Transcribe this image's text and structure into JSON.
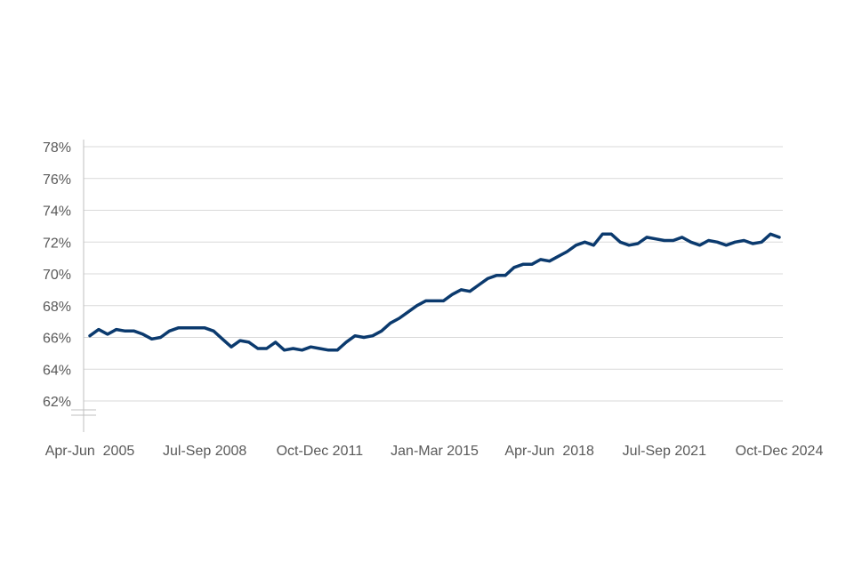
{
  "chart_data": {
    "type": "line",
    "title": "",
    "xlabel": "",
    "ylabel": "",
    "x_tick_labels": [
      "Apr-Jun  2005",
      "Jul-Sep 2008",
      "Oct-Dec 2011",
      "Jan-Mar 2015",
      "Apr-Jun  2018",
      "Jul-Sep 2021",
      "Oct-Dec 2024"
    ],
    "y_tick_labels": [
      "62%",
      "64%",
      "66%",
      "68%",
      "70%",
      "72%",
      "74%",
      "76%",
      "78%"
    ],
    "ylim": [
      62,
      78
    ],
    "y_unit": "%",
    "grid": true,
    "axis_break": true,
    "colors": {
      "line": "#0b3a6e",
      "grid": "#d9d9d9",
      "axis": "#bfbfbf",
      "text": "#595959"
    },
    "series": [
      {
        "values": [
          66.1,
          66.5,
          66.2,
          66.5,
          66.4,
          66.4,
          66.2,
          65.9,
          66.0,
          66.4,
          66.6,
          66.6,
          66.6,
          66.6,
          66.4,
          65.9,
          65.4,
          65.8,
          65.7,
          65.3,
          65.3,
          65.7,
          65.2,
          65.3,
          65.2,
          65.4,
          65.3,
          65.2,
          65.2,
          65.7,
          66.1,
          66.0,
          66.1,
          66.4,
          66.9,
          67.2,
          67.6,
          68.0,
          68.3,
          68.3,
          68.3,
          68.7,
          69.0,
          68.9,
          69.3,
          69.7,
          69.9,
          69.9,
          70.4,
          70.6,
          70.6,
          70.9,
          70.8,
          71.1,
          71.4,
          71.8,
          72.0,
          71.8,
          72.5,
          72.5,
          72.0,
          71.8,
          71.9,
          72.3,
          72.2,
          72.1,
          72.1,
          72.3,
          72.0,
          71.8,
          72.1,
          72.0,
          71.8,
          72.0,
          72.1,
          71.9,
          72.0,
          72.5,
          72.3
        ]
      }
    ]
  }
}
